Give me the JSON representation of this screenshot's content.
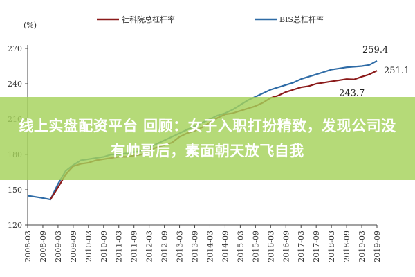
{
  "chart_data": {
    "type": "line",
    "unit_label": "(%)",
    "ylim": [
      120,
      270
    ],
    "yticks": [
      "270",
      "240",
      "210",
      "180",
      "150",
      "120"
    ],
    "categories": [
      "2008-03",
      "2008-09",
      "2009-03",
      "2009-09",
      "2010-03",
      "2010-09",
      "2011-03",
      "2011-09",
      "2012-03",
      "2012-09",
      "2013-03",
      "2013-09",
      "2014-03",
      "2014-09",
      "2015-03",
      "2015-09",
      "2016-03",
      "2016-09",
      "2017-03",
      "2017-09",
      "2018-03",
      "2018-09",
      "2019-03",
      "2019-09"
    ],
    "grid": false,
    "legend_position": "top",
    "series": [
      {
        "name": "社科院总杠杆率",
        "color": "#8B1A1A",
        "values": [
          null,
          null,
          null,
          null,
          null,
          null,
          null,
          null,
          null,
          null,
          null,
          null,
          null,
          null,
          null,
          null,
          null,
          null,
          null,
          null,
          null,
          null,
          null,
          null
        ]
      },
      {
        "name": "BIS总杠杆率",
        "color": "#2E6BA6",
        "values": [
          null,
          null,
          null,
          null,
          null,
          null,
          null,
          null,
          null,
          null,
          null,
          null,
          null,
          null,
          null,
          null,
          null,
          null,
          null,
          null,
          null,
          null,
          null,
          null
        ]
      }
    ],
    "annotations": [
      {
        "text": "259.4",
        "series": 1,
        "x": "2019-06"
      },
      {
        "text": "251.1",
        "series": 0,
        "x": "2019-09"
      },
      {
        "text": "243.7",
        "series": 0,
        "x": "2018-12"
      }
    ]
  },
  "chart_values": {
    "quarters": [
      "2008-03",
      "2008-06",
      "2008-09",
      "2008-12",
      "2009-03",
      "2009-06",
      "2009-09",
      "2009-12",
      "2010-03",
      "2010-06",
      "2010-09",
      "2010-12",
      "2011-03",
      "2011-06",
      "2011-09",
      "2011-12",
      "2012-03",
      "2012-06",
      "2012-09",
      "2012-12",
      "2013-03",
      "2013-06",
      "2013-09",
      "2013-12",
      "2014-03",
      "2014-06",
      "2014-09",
      "2014-12",
      "2015-03",
      "2015-06",
      "2015-09",
      "2015-12",
      "2016-03",
      "2016-06",
      "2016-09",
      "2016-12",
      "2017-03",
      "2017-06",
      "2017-09",
      "2017-12",
      "2018-03",
      "2018-06",
      "2018-09",
      "2018-12",
      "2019-03",
      "2019-06",
      "2019-09"
    ],
    "cass": [
      null,
      null,
      null,
      141.7,
      152,
      163,
      170,
      172,
      173,
      175,
      176,
      177,
      178,
      178,
      179,
      180,
      184,
      186,
      188,
      190,
      195,
      198,
      200,
      203,
      207,
      211,
      214,
      215,
      217,
      219,
      221,
      224,
      228,
      230,
      233,
      235,
      237,
      238,
      240,
      241,
      242,
      243,
      244,
      243.7,
      246,
      248,
      251.1
    ],
    "bis": [
      145,
      144,
      143,
      141.7,
      155,
      166,
      171,
      175,
      176,
      177,
      178,
      180,
      180,
      181,
      182,
      183,
      186,
      189,
      192,
      195,
      198,
      201,
      204,
      207,
      210,
      213,
      215,
      218,
      222,
      226,
      229,
      232,
      235,
      237,
      239,
      241,
      244,
      246,
      248,
      250,
      252,
      253,
      254,
      254.5,
      255,
      256,
      259.4
    ]
  },
  "banner": {
    "text": "线上实盘配资平台 回顾：女子入职打扮精致，发现公司没有帅哥后，素面朝天放飞自我"
  }
}
